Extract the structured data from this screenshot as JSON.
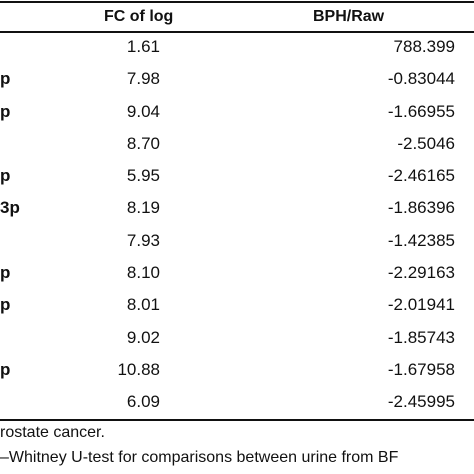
{
  "header": {
    "fc_label": "FC of log",
    "bph_label": "BPH/Raw"
  },
  "rows": [
    {
      "label": "",
      "fc": "1.61",
      "raw": "788.399"
    },
    {
      "label": "p",
      "fc": "7.98",
      "raw": "-0.83044"
    },
    {
      "label": "p",
      "fc": "9.04",
      "raw": "-1.66955"
    },
    {
      "label": "",
      "fc": "8.70",
      "raw": "-2.5046"
    },
    {
      "label": "p",
      "fc": "5.95",
      "raw": "-2.46165"
    },
    {
      "label": "3p",
      "fc": "8.19",
      "raw": "-1.86396"
    },
    {
      "label": "",
      "fc": "7.93",
      "raw": "-1.42385"
    },
    {
      "label": "p",
      "fc": "8.10",
      "raw": "-2.29163"
    },
    {
      "label": "p",
      "fc": "8.01",
      "raw": "-2.01941"
    },
    {
      "label": "",
      "fc": "9.02",
      "raw": "-1.85743"
    },
    {
      "label": "p",
      "fc": "10.88",
      "raw": "-1.67958"
    },
    {
      "label": "",
      "fc": "6.09",
      "raw": "-2.45995"
    }
  ],
  "footnotes": {
    "line1": "rostate cancer.",
    "line2": "–Whitney U-test for comparisons between urine from BF"
  }
}
